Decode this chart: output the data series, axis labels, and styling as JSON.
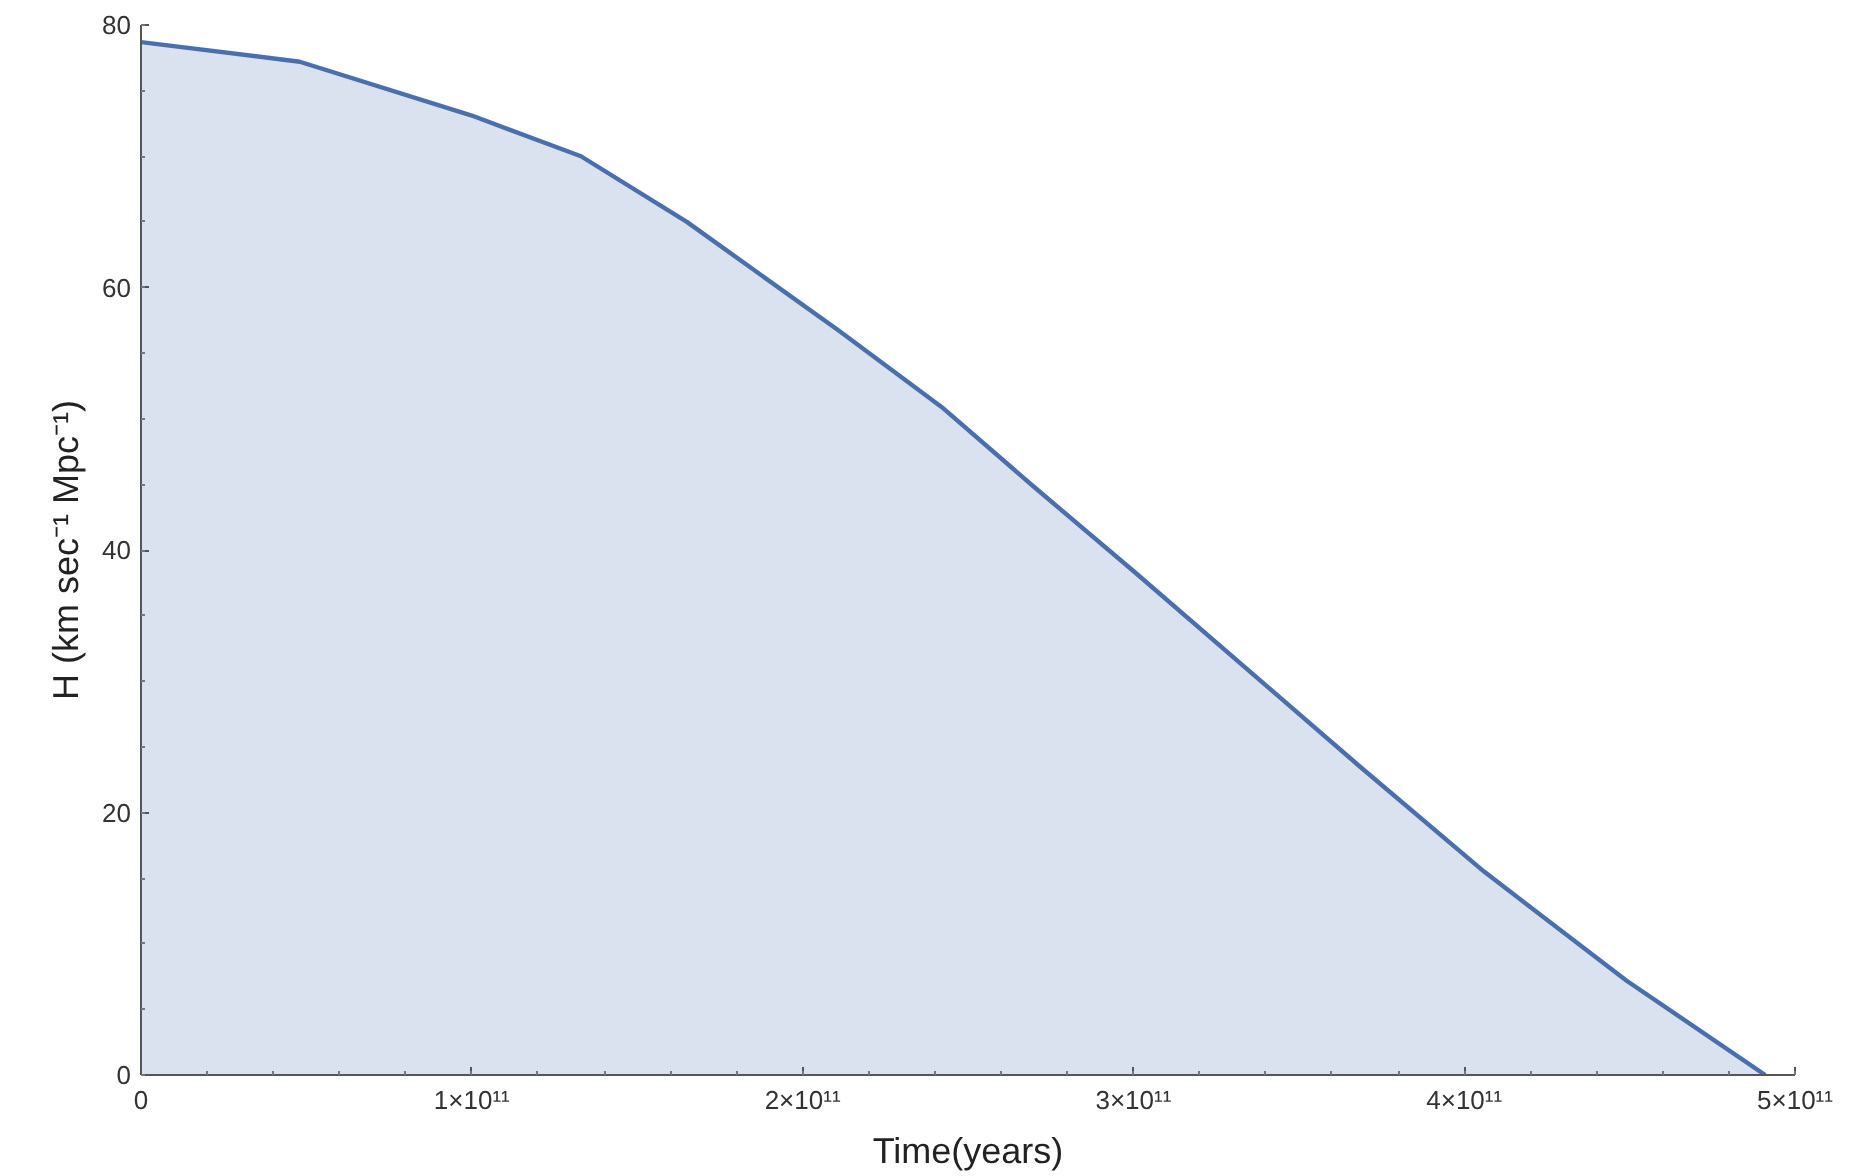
{
  "chart_data": {
    "type": "area",
    "xlabel": "Time(years)",
    "ylabel": "H (km sec⁻¹ Mpc⁻¹)",
    "x": [
      0,
      48000000000.0,
      100000000000.0,
      133000000000.0,
      165000000000.0,
      211000000000.0,
      242000000000.0,
      270000000000.0,
      300000000000.0,
      368000000000.0,
      406000000000.0,
      449000000000.0,
      491000000000.0
    ],
    "series": [
      {
        "color": "#4a6fae",
        "values": [
          78.7,
          77.2,
          73.1,
          70.0,
          65.0,
          56.7,
          50.9,
          44.8,
          38.4,
          23.6,
          15.5,
          7.2,
          0
        ]
      }
    ],
    "xlim": [
      0,
      500000000000.0
    ],
    "ylim": [
      0,
      80
    ],
    "xticks": [
      0,
      {
        "value": 100000000000.0,
        "label": "1×10¹¹"
      },
      {
        "value": 200000000000.0,
        "label": "2×10¹¹"
      },
      {
        "value": 300000000000.0,
        "label": "3×10¹¹"
      },
      {
        "value": 400000000000.0,
        "label": "4×10¹¹"
      },
      {
        "value": 500000000000.0,
        "label": "5×10¹¹"
      }
    ],
    "yticks": [
      0,
      20,
      40,
      60,
      80
    ],
    "grid": false
  }
}
